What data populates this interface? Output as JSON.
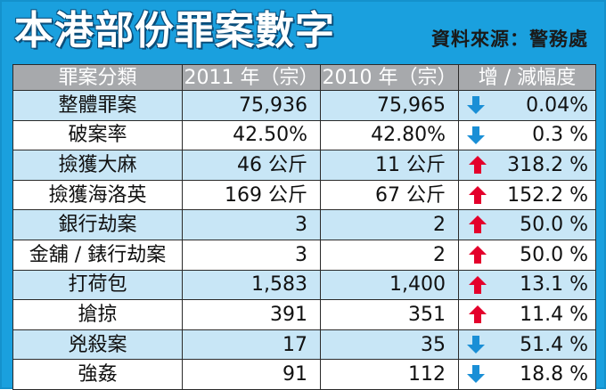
{
  "header": {
    "title": "本港部份罪案數字",
    "source": "資料來源：警務處"
  },
  "table": {
    "columns": [
      "罪案分類",
      "2011 年（宗）",
      "2010 年（宗）",
      "增 / 減幅度"
    ],
    "rows": [
      {
        "category": "整體罪案",
        "y2011": "75,936",
        "y2010": "75,965",
        "direction": "down",
        "change": "0.04%"
      },
      {
        "category": "破案率",
        "y2011": "42.50%",
        "y2010": "42.80%",
        "direction": "down",
        "change": "0.3 %"
      },
      {
        "category": "撿獲大麻",
        "y2011": "46 公斤",
        "y2010": "11 公斤",
        "direction": "up",
        "change": "318.2 %"
      },
      {
        "category": "撿獲海洛英",
        "y2011": "169 公斤",
        "y2010": "67 公斤",
        "direction": "up",
        "change": "152.2 %"
      },
      {
        "category": "銀行劫案",
        "y2011": "3",
        "y2010": "2",
        "direction": "up",
        "change": "50.0 %"
      },
      {
        "category": "金舖 / 錶行劫案",
        "y2011": "3",
        "y2010": "2",
        "direction": "up",
        "change": "50.0 %"
      },
      {
        "category": "打荷包",
        "y2011": "1,583",
        "y2010": "1,400",
        "direction": "up",
        "change": "13.1 %"
      },
      {
        "category": "搶掠",
        "y2011": "391",
        "y2010": "351",
        "direction": "up",
        "change": "11.4 %"
      },
      {
        "category": "兇殺案",
        "y2011": "17",
        "y2010": "35",
        "direction": "down",
        "change": "51.4 %"
      },
      {
        "category": "強姦",
        "y2011": "91",
        "y2010": "112",
        "direction": "down",
        "change": "18.8 %"
      }
    ]
  },
  "colors": {
    "background": "#1aa0de",
    "header_row": "#a7a9ac",
    "stripe": "#c8e6f6",
    "up_arrow": "#e4002b",
    "down_arrow": "#1a8fd6"
  },
  "icons": {
    "up": "up-arrow-icon",
    "down": "down-arrow-icon"
  }
}
